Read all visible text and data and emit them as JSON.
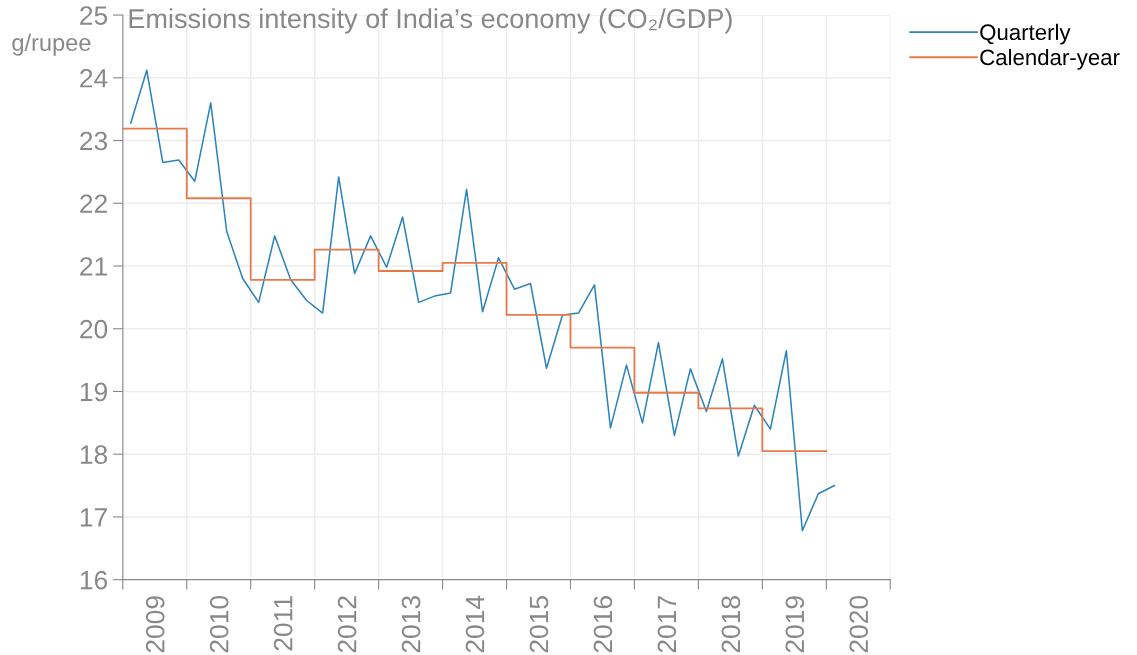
{
  "chart_data": {
    "type": "line",
    "title": "Emissions intensity of India’s economy (CO₂/GDP)",
    "ylabel": "g/rupee",
    "xlim": [
      2008.5,
      2020.5
    ],
    "ylim": [
      16,
      25
    ],
    "yticks": [
      16,
      17,
      18,
      19,
      20,
      21,
      22,
      23,
      24,
      25
    ],
    "xticks": [
      {
        "value": 2008.5,
        "label": null
      },
      2009,
      {
        "value": 2009.5,
        "label": null
      },
      2010,
      {
        "value": 2010.5,
        "label": null
      },
      2011,
      {
        "value": 2011.5,
        "label": null
      },
      2012,
      {
        "value": 2012.5,
        "label": null
      },
      2013,
      {
        "value": 2013.5,
        "label": null
      },
      2014,
      {
        "value": 2014.5,
        "label": null
      },
      2015,
      {
        "value": 2015.5,
        "label": null
      },
      2016,
      {
        "value": 2016.5,
        "label": null
      },
      2017,
      {
        "value": 2017.5,
        "label": null
      },
      2018,
      {
        "value": 2018.5,
        "label": null
      },
      2019,
      {
        "value": 2019.5,
        "label": null
      },
      2020,
      {
        "value": 2020.5,
        "label": null
      }
    ],
    "grid": true,
    "legend": "top right",
    "marker": "none",
    "line_style": "solid",
    "series": [
      {
        "name": "Quarterly",
        "color": "#2b83ba",
        "x": [
          2008.625,
          2008.875,
          2009.125,
          2009.375,
          2009.625,
          2009.875,
          2010.125,
          2010.375,
          2010.625,
          2010.875,
          2011.125,
          2011.375,
          2011.625,
          2011.875,
          2012.125,
          2012.375,
          2012.625,
          2012.875,
          2013.125,
          2013.375,
          2013.625,
          2013.875,
          2014.125,
          2014.375,
          2014.625,
          2014.875,
          2015.125,
          2015.375,
          2015.625,
          2015.875,
          2016.125,
          2016.375,
          2016.625,
          2016.875,
          2017.125,
          2017.375,
          2017.625,
          2017.875,
          2018.125,
          2018.375,
          2018.625,
          2018.875,
          2019.125,
          2019.375,
          2019.625
        ],
        "values": [
          23.28,
          24.12,
          22.65,
          22.69,
          22.35,
          23.6,
          21.55,
          20.8,
          20.42,
          21.48,
          20.78,
          20.45,
          20.25,
          22.42,
          20.88,
          21.48,
          20.98,
          21.78,
          20.42,
          20.52,
          20.57,
          22.22,
          20.27,
          21.13,
          20.63,
          20.72,
          19.37,
          20.22,
          20.25,
          20.7,
          18.42,
          19.42,
          18.5,
          19.78,
          18.3,
          19.36,
          18.68,
          19.52,
          17.97,
          18.78,
          18.4,
          19.65,
          16.78,
          17.37,
          17.5
        ]
      },
      {
        "name": "Calendar-year",
        "color": "#e8794a",
        "type": "step",
        "x": [
          2008.5,
          2009.5,
          2010.5,
          2011.5,
          2012.5,
          2013.5,
          2014.5,
          2015.5,
          2016.5,
          2017.5,
          2018.5,
          2019.5
        ],
        "values": [
          23.19,
          22.08,
          20.78,
          21.26,
          20.92,
          21.05,
          20.22,
          19.7,
          18.98,
          18.73,
          18.05,
          18.05
        ]
      }
    ]
  }
}
